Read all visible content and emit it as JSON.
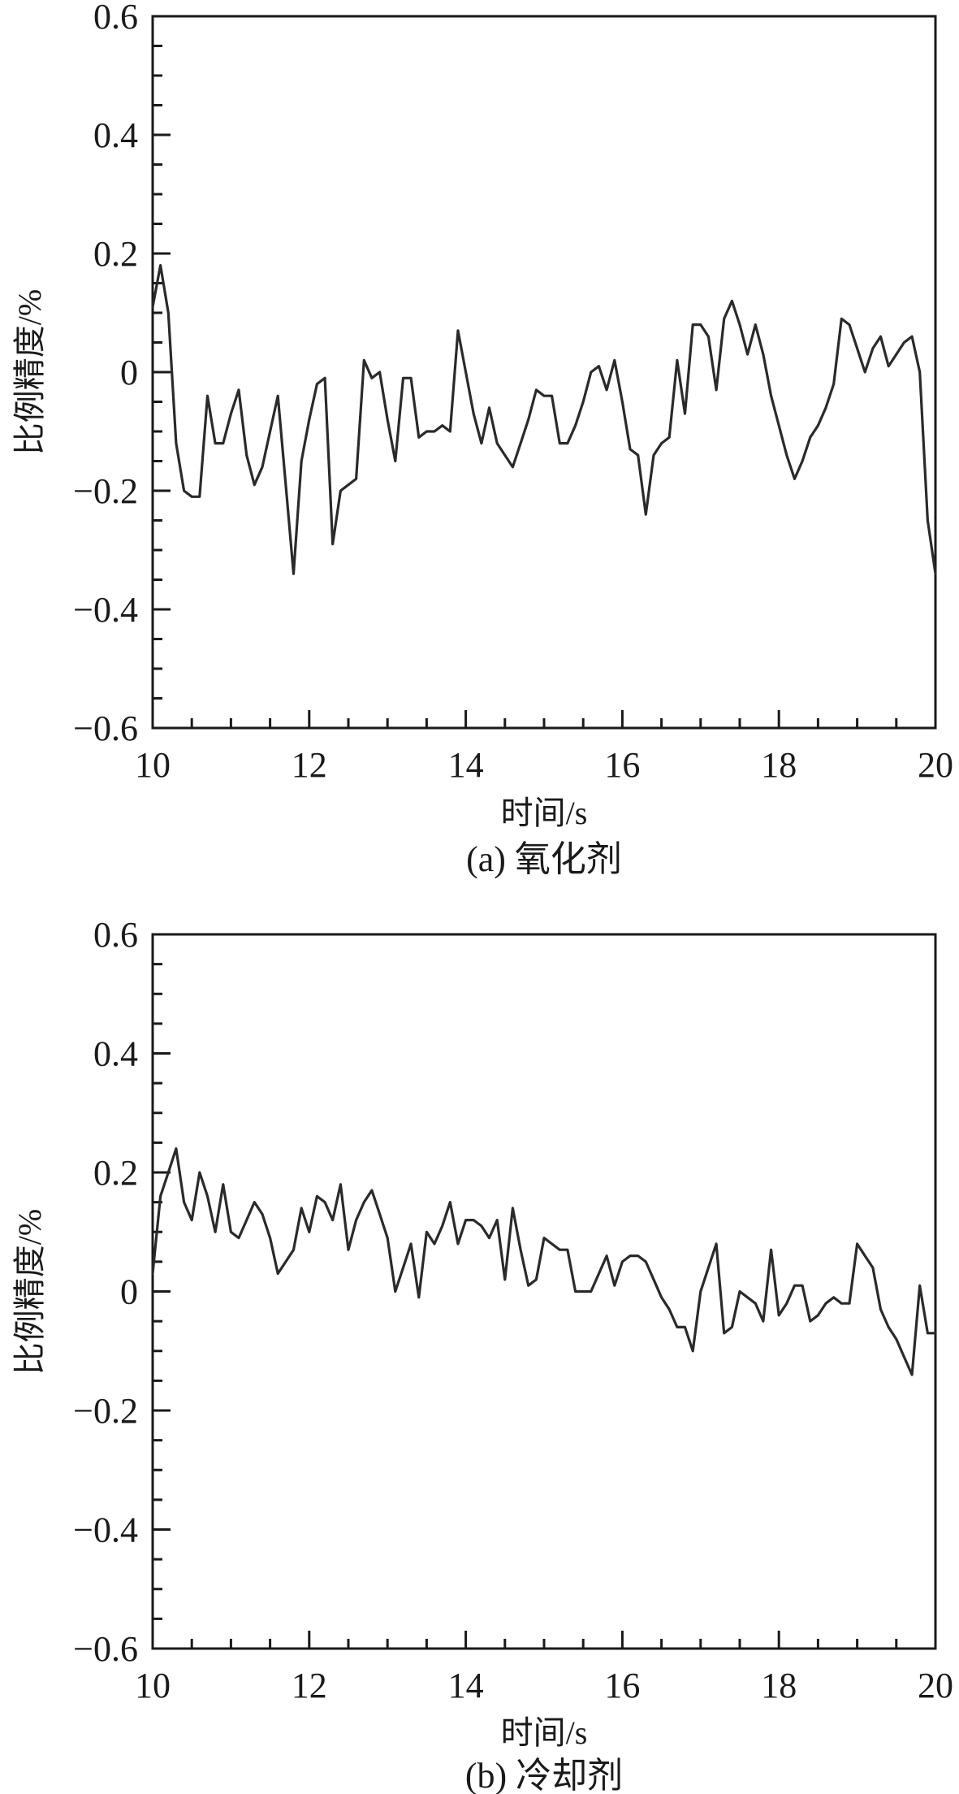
{
  "chart_data": [
    {
      "type": "line",
      "caption": "(a) 氧化剂",
      "xlabel": "时间/s",
      "ylabel": "比例精度/%",
      "xlim": [
        10,
        20
      ],
      "ylim": [
        -0.6,
        0.6
      ],
      "xticks": [
        "10",
        "12",
        "14",
        "16",
        "18",
        "20"
      ],
      "yticks": [
        "−0.6",
        "−0.4",
        "−0.2",
        "0",
        "0.2",
        "0.4",
        "0.6"
      ],
      "grid": false,
      "color": "#2a2a2a",
      "series": [
        {
          "x": [
            10.0,
            10.1,
            10.2,
            10.3,
            10.4,
            10.5,
            10.6,
            10.7,
            10.8,
            10.9,
            11.0,
            11.1,
            11.2,
            11.3,
            11.4,
            11.5,
            11.6,
            11.7,
            11.8,
            11.9,
            12.0,
            12.1,
            12.2,
            12.3,
            12.4,
            12.5,
            12.6,
            12.7,
            12.8,
            12.9,
            13.0,
            13.1,
            13.2,
            13.3,
            13.4,
            13.5,
            13.6,
            13.7,
            13.8,
            13.9,
            14.0,
            14.1,
            14.2,
            14.3,
            14.4,
            14.5,
            14.6,
            14.7,
            14.8,
            14.9,
            15.0,
            15.1,
            15.2,
            15.3,
            15.4,
            15.5,
            15.6,
            15.7,
            15.8,
            15.9,
            16.0,
            16.1,
            16.2,
            16.3,
            16.4,
            16.5,
            16.6,
            16.7,
            16.8,
            16.9,
            17.0,
            17.1,
            17.2,
            17.3,
            17.4,
            17.5,
            17.6,
            17.7,
            17.8,
            17.9,
            18.0,
            18.1,
            18.2,
            18.3,
            18.4,
            18.5,
            18.6,
            18.7,
            18.8,
            18.9,
            19.0,
            19.1,
            19.2,
            19.3,
            19.4,
            19.5,
            19.6,
            19.7,
            19.8,
            19.9,
            20.0
          ],
          "values": [
            0.11,
            0.18,
            0.1,
            -0.12,
            -0.2,
            -0.21,
            -0.21,
            -0.04,
            -0.12,
            -0.12,
            -0.07,
            -0.03,
            -0.14,
            -0.19,
            -0.16,
            -0.1,
            -0.04,
            -0.19,
            -0.34,
            -0.15,
            -0.08,
            -0.02,
            -0.01,
            -0.29,
            -0.2,
            -0.19,
            -0.18,
            0.02,
            -0.01,
            0.0,
            -0.08,
            -0.15,
            -0.01,
            -0.01,
            -0.11,
            -0.1,
            -0.1,
            -0.09,
            -0.1,
            0.07,
            0.0,
            -0.07,
            -0.12,
            -0.06,
            -0.12,
            -0.14,
            -0.16,
            -0.12,
            -0.08,
            -0.03,
            -0.04,
            -0.04,
            -0.12,
            -0.12,
            -0.09,
            -0.05,
            0.0,
            0.01,
            -0.03,
            0.02,
            -0.05,
            -0.13,
            -0.14,
            -0.24,
            -0.14,
            -0.12,
            -0.11,
            0.02,
            -0.07,
            0.08,
            0.08,
            0.06,
            -0.03,
            0.09,
            0.12,
            0.08,
            0.03,
            0.08,
            0.03,
            -0.04,
            -0.09,
            -0.14,
            -0.18,
            -0.15,
            -0.11,
            -0.09,
            -0.06,
            -0.02,
            0.09,
            0.08,
            0.04,
            0.0,
            0.04,
            0.06,
            0.01,
            0.03,
            0.05,
            0.06,
            0.0,
            -0.25,
            -0.34
          ]
        }
      ]
    },
    {
      "type": "line",
      "caption": "(b) 冷却剂",
      "xlabel": "时间/s",
      "ylabel": "比例精度/%",
      "xlim": [
        10,
        20
      ],
      "ylim": [
        -0.6,
        0.6
      ],
      "xticks": [
        "10",
        "12",
        "14",
        "16",
        "18",
        "20"
      ],
      "yticks": [
        "−0.6",
        "−0.4",
        "−0.2",
        "0",
        "0.2",
        "0.4",
        "0.6"
      ],
      "grid": false,
      "color": "#2a2a2a",
      "series": [
        {
          "x": [
            10.0,
            10.1,
            10.2,
            10.3,
            10.4,
            10.5,
            10.6,
            10.7,
            10.8,
            10.9,
            11.0,
            11.1,
            11.2,
            11.3,
            11.4,
            11.5,
            11.6,
            11.7,
            11.8,
            11.9,
            12.0,
            12.1,
            12.2,
            12.3,
            12.4,
            12.5,
            12.6,
            12.7,
            12.8,
            12.9,
            13.0,
            13.1,
            13.2,
            13.3,
            13.4,
            13.5,
            13.6,
            13.7,
            13.8,
            13.9,
            14.0,
            14.1,
            14.2,
            14.3,
            14.4,
            14.5,
            14.6,
            14.7,
            14.8,
            14.9,
            15.0,
            15.1,
            15.2,
            15.3,
            15.4,
            15.5,
            15.6,
            15.7,
            15.8,
            15.9,
            16.0,
            16.1,
            16.2,
            16.3,
            16.4,
            16.5,
            16.6,
            16.7,
            16.8,
            16.9,
            17.0,
            17.1,
            17.2,
            17.3,
            17.4,
            17.5,
            17.6,
            17.7,
            17.8,
            17.9,
            18.0,
            18.1,
            18.2,
            18.3,
            18.4,
            18.5,
            18.6,
            18.7,
            18.8,
            18.9,
            19.0,
            19.1,
            19.2,
            19.3,
            19.4,
            19.5,
            19.6,
            19.7,
            19.8,
            19.9,
            20.0
          ],
          "values": [
            0.03,
            0.16,
            0.2,
            0.24,
            0.15,
            0.12,
            0.2,
            0.16,
            0.1,
            0.18,
            0.1,
            0.09,
            0.12,
            0.15,
            0.13,
            0.09,
            0.03,
            0.05,
            0.07,
            0.14,
            0.1,
            0.16,
            0.15,
            0.12,
            0.18,
            0.07,
            0.12,
            0.15,
            0.17,
            0.13,
            0.09,
            0.0,
            0.04,
            0.08,
            -0.01,
            0.1,
            0.08,
            0.11,
            0.15,
            0.08,
            0.12,
            0.12,
            0.11,
            0.09,
            0.12,
            0.02,
            0.14,
            0.07,
            0.01,
            0.02,
            0.09,
            0.08,
            0.07,
            0.07,
            0.0,
            0.0,
            0.0,
            0.03,
            0.06,
            0.01,
            0.05,
            0.06,
            0.06,
            0.05,
            0.02,
            -0.01,
            -0.03,
            -0.06,
            -0.06,
            -0.1,
            0.0,
            0.04,
            0.08,
            -0.07,
            -0.06,
            0.0,
            -0.01,
            -0.02,
            -0.05,
            0.07,
            -0.04,
            -0.02,
            0.01,
            0.01,
            -0.05,
            -0.04,
            -0.02,
            -0.01,
            -0.02,
            -0.02,
            0.08,
            0.06,
            0.04,
            -0.03,
            -0.06,
            -0.08,
            -0.11,
            -0.14,
            0.01,
            -0.07,
            -0.07
          ]
        }
      ]
    }
  ]
}
